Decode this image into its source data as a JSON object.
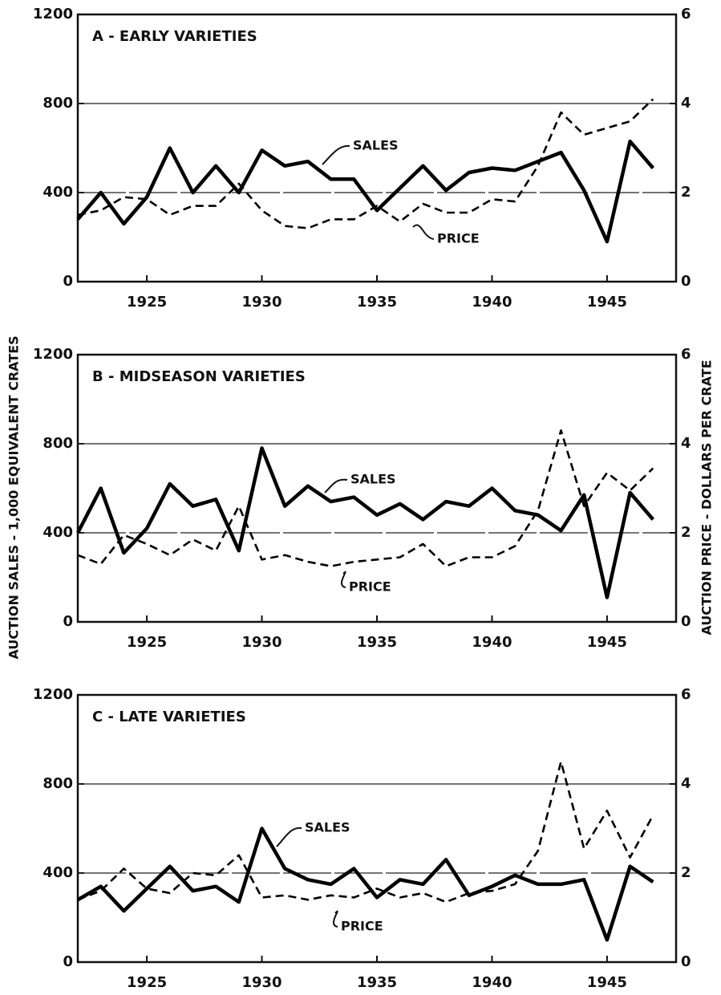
{
  "axis_labels": {
    "y": "AUCTION SALES  -  1,000 EQUIVALENT CRATES",
    "y2": "AUCTION PRICE - DOLLARS PER CRATE"
  },
  "chart_data": [
    {
      "type": "line",
      "title": "A - EARLY VARIETIES",
      "x": [
        1922,
        1923,
        1924,
        1925,
        1926,
        1927,
        1928,
        1929,
        1930,
        1931,
        1932,
        1933,
        1934,
        1935,
        1936,
        1937,
        1938,
        1939,
        1940,
        1941,
        1942,
        1943,
        1944,
        1945,
        1946,
        1947
      ],
      "xlim": [
        1922,
        1948
      ],
      "xticks": [
        1925,
        1930,
        1935,
        1940,
        1945
      ],
      "ylim": [
        0,
        1200
      ],
      "yticks": [
        0,
        400,
        800,
        1200
      ],
      "y2lim": [
        0,
        6
      ],
      "y2ticks": [
        0,
        2,
        4,
        6
      ],
      "grid": true,
      "series": [
        {
          "name": "SALES",
          "color": "#000000",
          "line_style": "solid",
          "values": [
            280,
            400,
            260,
            380,
            600,
            400,
            520,
            400,
            590,
            520,
            540,
            460,
            460,
            320,
            420,
            520,
            410,
            490,
            510,
            500,
            540,
            580,
            410,
            180,
            630,
            510
          ]
        },
        {
          "name": "PRICE",
          "color": "#000000",
          "line_style": "dashed",
          "axis": "y2",
          "values": [
            1.5,
            1.6,
            1.9,
            1.85,
            1.5,
            1.7,
            1.7,
            2.2,
            1.6,
            1.25,
            1.2,
            1.4,
            1.4,
            1.7,
            1.35,
            1.75,
            1.55,
            1.55,
            1.85,
            1.8,
            2.6,
            3.8,
            3.3,
            3.45,
            3.6,
            4.1
          ]
        }
      ]
    },
    {
      "type": "line",
      "title": "B - MIDSEASON VARIETIES",
      "x": [
        1922,
        1923,
        1924,
        1925,
        1926,
        1927,
        1928,
        1929,
        1930,
        1931,
        1932,
        1933,
        1934,
        1935,
        1936,
        1937,
        1938,
        1939,
        1940,
        1941,
        1942,
        1943,
        1944,
        1945,
        1946,
        1947
      ],
      "xlim": [
        1922,
        1948
      ],
      "xticks": [
        1925,
        1930,
        1935,
        1940,
        1945
      ],
      "ylim": [
        0,
        1200
      ],
      "yticks": [
        0,
        400,
        800,
        1200
      ],
      "y2lim": [
        0,
        6
      ],
      "y2ticks": [
        0,
        2,
        4,
        6
      ],
      "grid": true,
      "series": [
        {
          "name": "SALES",
          "color": "#000000",
          "line_style": "solid",
          "values": [
            400,
            600,
            310,
            420,
            620,
            520,
            550,
            320,
            780,
            520,
            610,
            540,
            560,
            480,
            530,
            460,
            540,
            520,
            600,
            500,
            480,
            410,
            570,
            110,
            580,
            460
          ]
        },
        {
          "name": "PRICE",
          "color": "#000000",
          "line_style": "dashed",
          "axis": "y2",
          "values": [
            1.5,
            1.3,
            1.95,
            1.75,
            1.5,
            1.85,
            1.6,
            2.6,
            1.4,
            1.5,
            1.35,
            1.25,
            1.35,
            1.4,
            1.45,
            1.75,
            1.25,
            1.45,
            1.45,
            1.7,
            2.5,
            4.3,
            2.6,
            3.35,
            2.95,
            3.45
          ]
        }
      ]
    },
    {
      "type": "line",
      "title": "C - LATE VARIETIES",
      "x": [
        1922,
        1923,
        1924,
        1925,
        1926,
        1927,
        1928,
        1929,
        1930,
        1931,
        1932,
        1933,
        1934,
        1935,
        1936,
        1937,
        1938,
        1939,
        1940,
        1941,
        1942,
        1943,
        1944,
        1945,
        1946,
        1947
      ],
      "xlim": [
        1922,
        1948
      ],
      "xticks": [
        1925,
        1930,
        1935,
        1940,
        1945
      ],
      "ylim": [
        0,
        1200
      ],
      "yticks": [
        0,
        400,
        800,
        1200
      ],
      "y2lim": [
        0,
        6
      ],
      "y2ticks": [
        0,
        2,
        4,
        6
      ],
      "grid": true,
      "series": [
        {
          "name": "SALES",
          "color": "#000000",
          "line_style": "solid",
          "values": [
            280,
            340,
            230,
            330,
            430,
            320,
            340,
            270,
            600,
            420,
            370,
            350,
            420,
            290,
            370,
            350,
            460,
            300,
            340,
            390,
            350,
            350,
            370,
            100,
            430,
            360
          ]
        },
        {
          "name": "PRICE",
          "color": "#000000",
          "line_style": "dashed",
          "axis": "y2",
          "values": [
            1.4,
            1.6,
            2.1,
            1.65,
            1.55,
            2.0,
            1.95,
            2.4,
            1.45,
            1.5,
            1.4,
            1.5,
            1.45,
            1.65,
            1.45,
            1.55,
            1.35,
            1.55,
            1.6,
            1.75,
            2.5,
            4.5,
            2.55,
            3.4,
            2.35,
            3.3
          ]
        }
      ]
    }
  ]
}
